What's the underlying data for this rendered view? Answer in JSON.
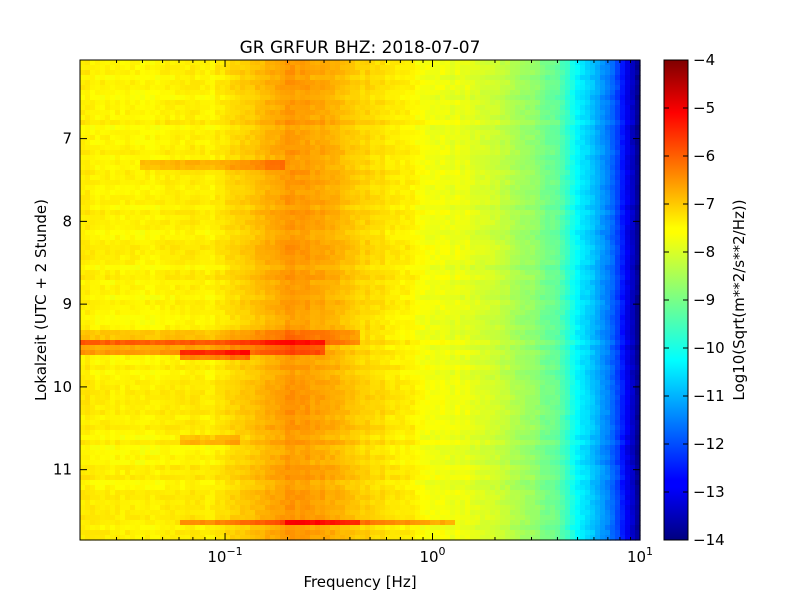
{
  "chart_data": {
    "type": "heatmap",
    "title": "GR GRFUR BHZ: 2018-07-07",
    "xlabel": "Frequency [Hz]",
    "ylabel": "Lokalzeit (UTC + 2 Stunde)",
    "colorbar_label": "Log10(Sqrt(m**2/s**2/Hz))",
    "colormap": "jet",
    "x_scale": "log",
    "xlim": [
      0.02,
      10
    ],
    "x_ticks": [
      {
        "value": 0.1,
        "base": "10",
        "exp": "−1"
      },
      {
        "value": 1,
        "base": "10",
        "exp": "0"
      },
      {
        "value": 10,
        "base": "10",
        "exp": "1"
      }
    ],
    "ylim": [
      6.05,
      11.85
    ],
    "y_inverted": true,
    "y_ticks": [
      "7",
      "8",
      "9",
      "10",
      "11"
    ],
    "clim": [
      -14,
      -4
    ],
    "colorbar_ticks": [
      "−4",
      "−5",
      "−6",
      "−7",
      "−8",
      "−9",
      "−10",
      "−11",
      "−12",
      "−13",
      "−14"
    ],
    "grid": false,
    "base_spectrum": [
      {
        "f": 0.02,
        "v": -7.6
      },
      {
        "f": 0.04,
        "v": -7.7
      },
      {
        "f": 0.06,
        "v": -7.6
      },
      {
        "f": 0.09,
        "v": -7.6
      },
      {
        "f": 0.12,
        "v": -7.3
      },
      {
        "f": 0.15,
        "v": -7.1
      },
      {
        "f": 0.2,
        "v": -6.75
      },
      {
        "f": 0.3,
        "v": -6.9
      },
      {
        "f": 0.45,
        "v": -7.3
      },
      {
        "f": 0.7,
        "v": -7.6
      },
      {
        "f": 1.0,
        "v": -7.85
      },
      {
        "f": 1.5,
        "v": -8.0
      },
      {
        "f": 2.0,
        "v": -8.2
      },
      {
        "f": 3.0,
        "v": -8.8
      },
      {
        "f": 4.0,
        "v": -9.3
      },
      {
        "f": 5.0,
        "v": -10.3
      },
      {
        "f": 6.0,
        "v": -10.9
      },
      {
        "f": 7.5,
        "v": -11.8
      },
      {
        "f": 8.5,
        "v": -12.8
      },
      {
        "f": 10,
        "v": -13.9
      }
    ],
    "events": [
      {
        "t_start": 7.28,
        "t_end": 7.36,
        "f_min": 0.04,
        "f_max": 0.2,
        "delta": 0.6
      },
      {
        "t_start": 9.3,
        "t_end": 9.48,
        "f_min": 0.02,
        "f_max": 0.45,
        "delta": 0.55
      },
      {
        "t_start": 9.45,
        "t_end": 9.6,
        "f_min": 0.02,
        "f_max": 0.3,
        "delta": 0.85
      },
      {
        "t_start": 9.55,
        "t_end": 9.68,
        "f_min": 0.06,
        "f_max": 0.13,
        "delta": 1.05
      },
      {
        "t_start": 10.6,
        "t_end": 10.7,
        "f_min": 0.06,
        "f_max": 0.12,
        "delta": 0.5
      },
      {
        "t_start": 11.6,
        "t_end": 11.68,
        "f_min": 0.06,
        "f_max": 1.3,
        "delta": 0.9
      },
      {
        "t_start": 11.62,
        "t_end": 11.66,
        "f_min": 0.2,
        "f_max": 0.45,
        "delta": 0.6
      }
    ]
  }
}
